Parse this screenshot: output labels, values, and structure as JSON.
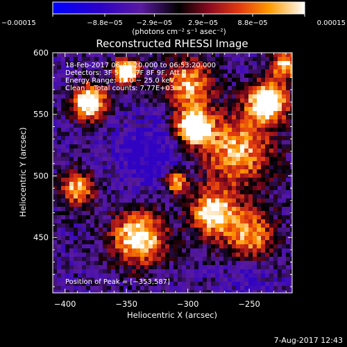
{
  "chart_data": {
    "type": "heatmap",
    "title": "Reconstructed RHESSI Image",
    "xlabel": "Heliocentric X (arcsec)",
    "ylabel": "Heliocentric Y (arcsec)",
    "xlim": [
      -410,
      -215
    ],
    "ylim": [
      405,
      600
    ],
    "x_ticks": [
      -400,
      -350,
      -300,
      -250
    ],
    "x_tick_labels": [
      "−400",
      "−350",
      "−300",
      "−250"
    ],
    "y_ticks": [
      600,
      550,
      500,
      450
    ],
    "y_tick_labels": [
      "600",
      "550",
      "500",
      "450"
    ],
    "colorbar": {
      "min": -0.00015,
      "max": 0.00015,
      "ticks": [
        -0.00015,
        -8.8e-05,
        -2.9e-05,
        2.9e-05,
        8.8e-05,
        0.00015
      ],
      "tick_labels": [
        "−0.00015",
        "−8.8e−05",
        "−2.9e−05",
        "2.9e−05",
        "8.8e−05",
        "0.00015"
      ],
      "unit_label": "(photons cm⁻² s⁻¹ asec⁻²)"
    },
    "annotations": [
      "18-Feb-2017 06:43:20.000 to 06:53:20.000",
      "Detectors: 3F 5F 6F 7F 8F 9F, Att 0",
      "Energy Range: 12.0 − 25.0 keV",
      "Clean    Total counts: 7.77E+03"
    ],
    "peak_label": "Position of Peak = [−353,587]",
    "peak": [
      -353,
      587
    ],
    "grid": false
  },
  "footer": {
    "timestamp": "7-Aug-2017 12:43"
  }
}
